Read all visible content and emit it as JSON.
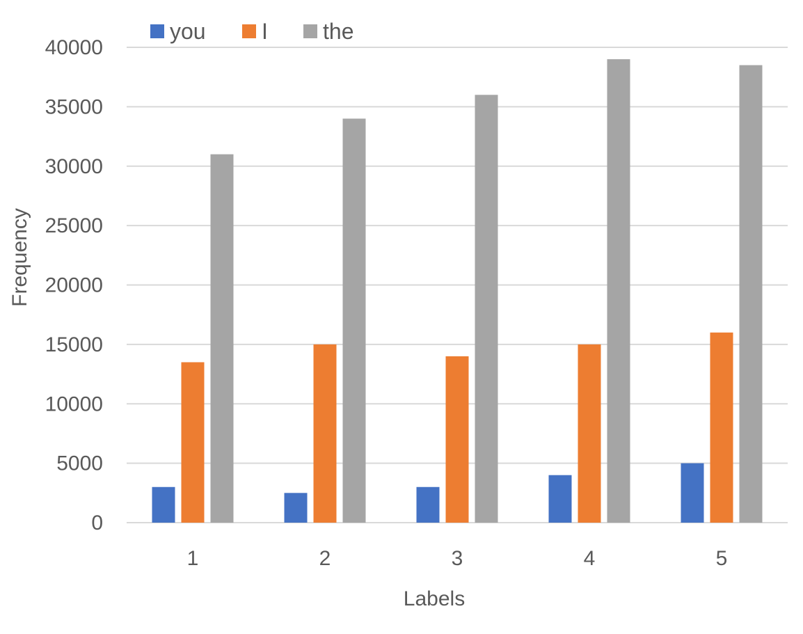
{
  "chart_data": {
    "type": "bar",
    "categories": [
      "1",
      "2",
      "3",
      "4",
      "5"
    ],
    "series": [
      {
        "name": "you",
        "color": "#4472C4",
        "values": [
          3000,
          2500,
          3000,
          4000,
          5000
        ]
      },
      {
        "name": "I",
        "color": "#ED7D31",
        "values": [
          13500,
          15000,
          14000,
          15000,
          16000
        ]
      },
      {
        "name": "the",
        "color": "#A5A5A5",
        "values": [
          31000,
          34000,
          36000,
          39000,
          38500
        ]
      }
    ],
    "y_ticks": [
      "0",
      "5000",
      "10000",
      "15000",
      "20000",
      "25000",
      "30000",
      "35000",
      "40000"
    ],
    "xlabel": "Labels",
    "ylabel": "Frequency",
    "ylim": [
      0,
      40000
    ],
    "grid": true,
    "legend_position": "top-left",
    "gridline_color": "#D9D9D9",
    "text_color": "#595959"
  }
}
